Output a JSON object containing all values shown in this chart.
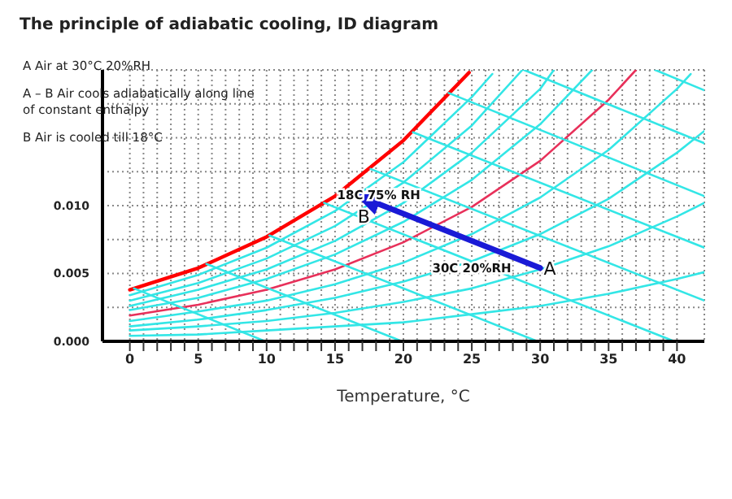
{
  "chart_data": {
    "type": "line",
    "title": "The principle of adiabatic cooling, ID diagram",
    "xlabel": "Temperature, °C",
    "xlim": [
      -2,
      42
    ],
    "xticks": [
      0,
      {
        "value": 1,
        "label": null
      },
      {
        "value": 2,
        "label": null
      },
      {
        "value": 3,
        "label": null
      },
      {
        "value": 4,
        "label": null
      },
      5,
      {
        "value": 6,
        "label": null
      },
      {
        "value": 7,
        "label": null
      },
      {
        "value": 8,
        "label": null
      },
      {
        "value": 9,
        "label": null
      },
      10,
      {
        "value": 11,
        "label": null
      },
      {
        "value": 12,
        "label": null
      },
      {
        "value": 13,
        "label": null
      },
      {
        "value": 14,
        "label": null
      },
      15,
      {
        "value": 16,
        "label": null
      },
      {
        "value": 17,
        "label": null
      },
      {
        "value": 18,
        "label": null
      },
      {
        "value": 19,
        "label": null
      },
      20,
      {
        "value": 21,
        "label": null
      },
      {
        "value": 22,
        "label": null
      },
      {
        "value": 23,
        "label": null
      },
      {
        "value": 24,
        "label": null
      },
      25,
      {
        "value": 26,
        "label": null
      },
      {
        "value": 27,
        "label": null
      },
      {
        "value": 28,
        "label": null
      },
      {
        "value": 29,
        "label": null
      },
      30,
      {
        "value": 31,
        "label": null
      },
      {
        "value": 32,
        "label": null
      },
      {
        "value": 33,
        "label": null
      },
      {
        "value": 34,
        "label": null
      },
      35,
      {
        "value": 36,
        "label": null
      },
      {
        "value": 37,
        "label": null
      },
      {
        "value": 38,
        "label": null
      },
      {
        "value": 39,
        "label": null
      },
      40
    ],
    "ylim": [
      0,
      0.02
    ],
    "yticks": [
      {
        "value": 0,
        "label": "0.000"
      },
      {
        "value": 0.0025,
        "label": null
      },
      {
        "value": 0.005,
        "label": "0.005"
      },
      {
        "value": 0.0075,
        "label": null
      },
      {
        "value": 0.01,
        "label": "0.010"
      },
      {
        "value": 0.0125,
        "label": null
      },
      {
        "value": 0.015,
        "label": null
      },
      {
        "value": 0.0175,
        "label": null
      },
      {
        "value": 0.02,
        "label": null
      }
    ],
    "grid": true,
    "marker": "none",
    "series": [
      {
        "color": "#ff0000",
        "x": [
          0,
          5,
          10,
          15,
          20,
          24.8
        ],
        "values": [
          0.0038,
          0.0054,
          0.0077,
          0.0107,
          0.0148,
          0.0198
        ]
      },
      {
        "color": "#33e6e6",
        "x": [
          0,
          5,
          10,
          15,
          20,
          25,
          26.5
        ],
        "values": [
          0.0034,
          0.0049,
          0.0069,
          0.0096,
          0.0132,
          0.018,
          0.0197
        ]
      },
      {
        "color": "#33e6e6",
        "x": [
          0,
          5,
          10,
          15,
          20,
          25,
          28.7
        ],
        "values": [
          0.003,
          0.0043,
          0.0061,
          0.0085,
          0.0117,
          0.0159,
          0.02
        ]
      },
      {
        "color": "#33e6e6",
        "x": [
          0,
          5,
          10,
          15,
          20,
          25,
          30,
          31
        ],
        "values": [
          0.0026,
          0.0038,
          0.0053,
          0.0074,
          0.0102,
          0.0139,
          0.0186,
          0.02
        ]
      },
      {
        "color": "#33e6e6",
        "x": [
          0,
          5,
          10,
          15,
          20,
          25,
          30,
          33.8
        ],
        "values": [
          0.0023,
          0.0032,
          0.0046,
          0.0064,
          0.0088,
          0.0119,
          0.016,
          0.02
        ]
      },
      {
        "color": "#e8305a",
        "x": [
          0,
          5,
          10,
          15,
          20,
          25,
          30,
          35,
          37
        ],
        "values": [
          0.0019,
          0.0027,
          0.0038,
          0.0053,
          0.0073,
          0.0099,
          0.0133,
          0.0178,
          0.02
        ]
      },
      {
        "color": "#33e6e6",
        "x": [
          0,
          5,
          10,
          15,
          20,
          25,
          30,
          35,
          40,
          41
        ],
        "values": [
          0.0015,
          0.0022,
          0.003,
          0.0042,
          0.0058,
          0.0079,
          0.0106,
          0.0141,
          0.0186,
          0.0197
        ]
      },
      {
        "color": "#33e6e6",
        "x": [
          0,
          5,
          10,
          15,
          20,
          25,
          30,
          35,
          40,
          42
        ],
        "values": [
          0.0011,
          0.0016,
          0.0023,
          0.0032,
          0.0044,
          0.0059,
          0.0079,
          0.0105,
          0.0139,
          0.0155
        ]
      },
      {
        "color": "#33e6e6",
        "x": [
          0,
          5,
          10,
          15,
          20,
          25,
          30,
          35,
          40,
          42
        ],
        "values": [
          0.0008,
          0.0011,
          0.0015,
          0.0021,
          0.0029,
          0.0039,
          0.0053,
          0.007,
          0.0092,
          0.0102
        ]
      },
      {
        "color": "#33e6e6",
        "x": [
          0,
          5,
          10,
          15,
          20,
          25,
          30,
          35,
          40,
          42
        ],
        "values": [
          0.0004,
          0.0005,
          0.0008,
          0.0011,
          0.0014,
          0.002,
          0.0026,
          0.0035,
          0.0046,
          0.0051
        ]
      },
      {
        "color": "#33e6e6",
        "x": [
          0.3,
          9.9
        ],
        "values": [
          0.0039,
          0
        ]
      },
      {
        "color": "#33e6e6",
        "x": [
          5.6,
          19.9
        ],
        "values": [
          0.0057,
          0
        ]
      },
      {
        "color": "#33e6e6",
        "x": [
          10.2,
          29.8
        ],
        "values": [
          0.0078,
          0
        ]
      },
      {
        "color": "#33e6e6",
        "x": [
          14.2,
          39.8
        ],
        "values": [
          0.0102,
          0
        ]
      },
      {
        "color": "#33e6e6",
        "x": [
          17.6,
          42
        ],
        "values": [
          0.0127,
          0.003
        ]
      },
      {
        "color": "#33e6e6",
        "x": [
          20.7,
          42
        ],
        "values": [
          0.0154,
          0.0069
        ]
      },
      {
        "color": "#33e6e6",
        "x": [
          23.3,
          42
        ],
        "values": [
          0.0183,
          0.0107
        ]
      },
      {
        "color": "#33e6e6",
        "x": [
          28.8,
          42
        ],
        "values": [
          0.02,
          0.0146
        ]
      },
      {
        "color": "#33e6e6",
        "x": [
          38.4,
          42
        ],
        "values": [
          0.02,
          0.0185
        ]
      },
      {
        "color": "#1a1ad6",
        "x": [
          30,
          18
        ],
        "values": [
          0.0054,
          0.0102
        ]
      }
    ],
    "annotations": [
      "A Air at 30°C 20%RH",
      "A – B Air cools adiabatically along line of constant enthalpy",
      "B Air is cooled till 18°C",
      {
        "text": "18C 75% RH",
        "x": 18.2,
        "y": 0.0108
      },
      {
        "text": "B",
        "x": 17.1,
        "y": 0.0092
      },
      {
        "text": "30C 20%RH",
        "x": 25,
        "y": 0.0054
      },
      {
        "text": "A",
        "x": 30.7,
        "y": 0.0054
      }
    ]
  }
}
